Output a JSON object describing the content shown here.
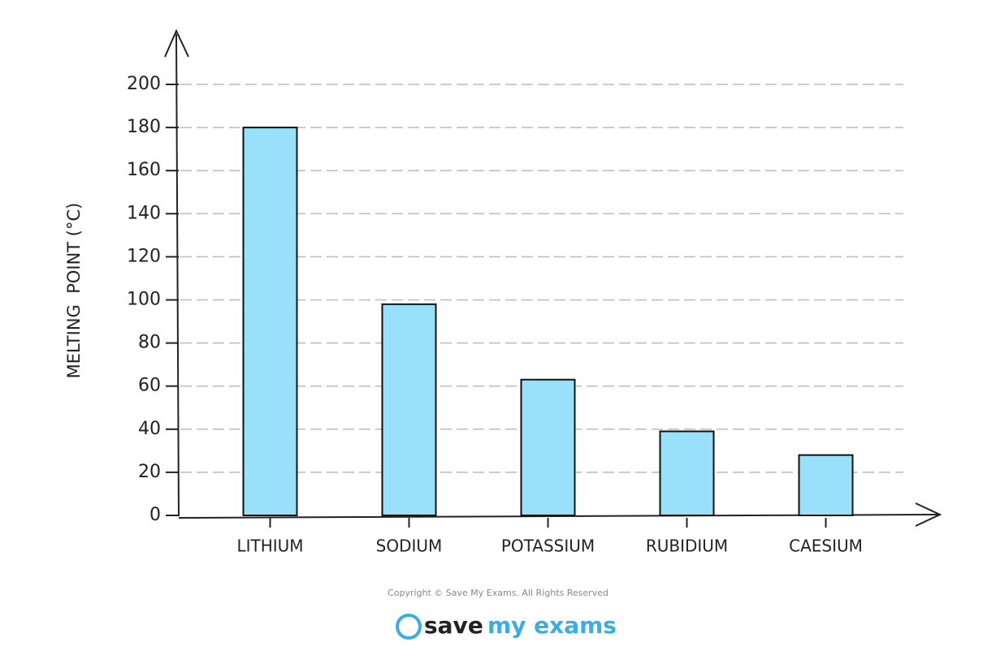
{
  "chart_data": {
    "type": "bar",
    "y_label": "MELTING  POINT (°C)",
    "categories": [
      "LITHIUM",
      "SODIUM",
      "POTASSIUM",
      "RUBIDIUM",
      "CAESIUM"
    ],
    "values": [
      180,
      98,
      63,
      39,
      28
    ],
    "color": "#99e0fa",
    "ylim": [
      0,
      200
    ],
    "yticks": [
      0,
      20,
      40,
      60,
      80,
      100,
      120,
      140,
      160,
      180,
      200
    ],
    "grid": true
  },
  "footer": {
    "copyright": "Copyright © Save My Exams. All Rights Reserved",
    "logo_dark": "save",
    "logo_blue": "my exams"
  }
}
